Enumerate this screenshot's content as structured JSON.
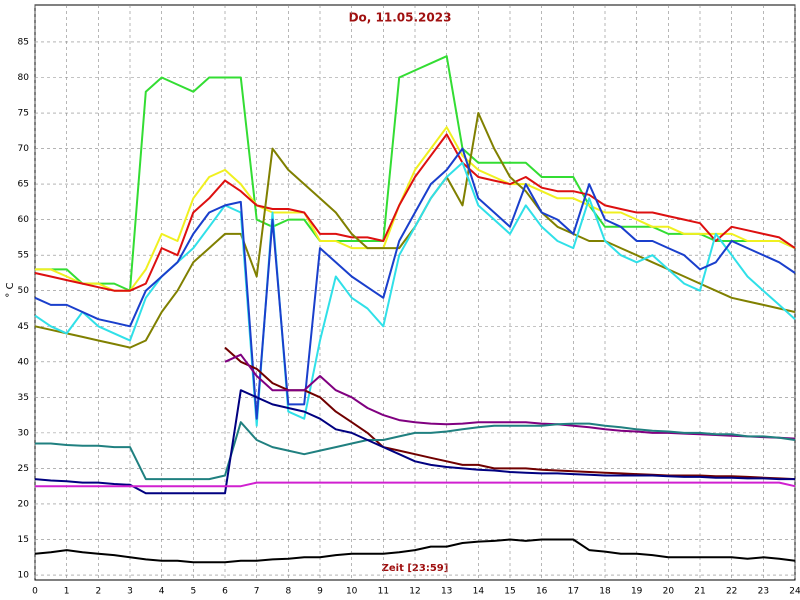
{
  "chart_data": {
    "type": "line",
    "title": "Do, 11.05.2023",
    "x_label": "Zeit [23:59]",
    "y_label": "° C",
    "x": [
      0,
      0.5,
      1,
      1.5,
      2,
      2.5,
      3,
      3.5,
      4,
      4.5,
      5,
      5.5,
      6,
      6.5,
      7,
      7.5,
      8,
      8.5,
      9,
      9.5,
      10,
      10.5,
      11,
      11.5,
      12,
      12.5,
      13,
      13.5,
      14,
      14.5,
      15,
      15.5,
      16,
      16.5,
      17,
      17.5,
      18,
      18.5,
      19,
      19.5,
      20,
      20.5,
      21,
      21.5,
      22,
      22.5,
      23,
      23.5,
      24
    ],
    "xlim": [
      0,
      24
    ],
    "xticks": [
      0,
      1,
      2,
      3,
      4,
      5,
      6,
      7,
      8,
      9,
      10,
      11,
      12,
      13,
      14,
      15,
      16,
      17,
      18,
      19,
      20,
      21,
      22,
      23,
      24
    ],
    "ylim": [
      9.3,
      90.2
    ],
    "yticks": [
      10,
      15,
      20,
      25,
      30,
      35,
      40,
      45,
      50,
      55,
      60,
      65,
      70,
      75,
      80,
      85
    ],
    "grid": true,
    "series": [
      {
        "color": "#33dd33",
        "values": [
          53,
          53,
          53,
          51,
          51,
          51,
          50,
          78,
          80,
          79,
          78,
          80,
          80,
          80,
          60,
          59,
          60,
          60,
          57,
          57,
          57,
          57,
          57,
          80,
          81,
          82,
          83,
          70,
          68,
          68,
          68,
          68,
          66,
          66,
          66,
          62,
          59,
          59,
          59,
          59,
          58,
          58,
          58,
          57,
          57,
          57,
          57,
          57,
          56
        ]
      },
      {
        "color": "#f0f020",
        "values": [
          53,
          53,
          52,
          51,
          51,
          50,
          50,
          53,
          58,
          57,
          63,
          66,
          67,
          65,
          62,
          61,
          61,
          61,
          57,
          57,
          56,
          56,
          56,
          62,
          67,
          70,
          73,
          69,
          67,
          66,
          65,
          65,
          64,
          63,
          63,
          62,
          61,
          61,
          60,
          59,
          59,
          58,
          58,
          58,
          58,
          57,
          57,
          57,
          56
        ]
      },
      {
        "color": "#dd1010",
        "values": [
          52.5,
          52,
          51.5,
          51,
          50.5,
          50,
          50,
          51,
          56,
          55,
          61,
          63,
          65.5,
          64,
          62,
          61.5,
          61.5,
          61,
          58,
          58,
          57.5,
          57.5,
          57,
          62,
          66,
          69,
          72,
          68,
          66,
          65.5,
          65,
          66,
          64.5,
          64,
          64,
          63.5,
          62,
          61.5,
          61,
          61,
          60.5,
          60,
          59.5,
          57,
          59,
          58.5,
          58,
          57.5,
          56
        ]
      },
      {
        "color": "#808000",
        "values": [
          45,
          44.5,
          44,
          43.5,
          43,
          42.5,
          42,
          43,
          47,
          50,
          54,
          56,
          58,
          58,
          52,
          70,
          67,
          65,
          63,
          61,
          58,
          56,
          56,
          56,
          59,
          63,
          66,
          62,
          75,
          70,
          66,
          64,
          61,
          59,
          58,
          57,
          57,
          56,
          55,
          54,
          53,
          52,
          51,
          50,
          49,
          48.5,
          48,
          47.5,
          47
        ]
      },
      {
        "color": "#30e0e8",
        "values": [
          46.5,
          45,
          44,
          47,
          45,
          44,
          43,
          49,
          52,
          54,
          56,
          59,
          62,
          61,
          31,
          61,
          33,
          32,
          43,
          52,
          49,
          47.5,
          45,
          55,
          59,
          63,
          66,
          68,
          62,
          60,
          58,
          62,
          59,
          57,
          56,
          63,
          57,
          55,
          54,
          55,
          53,
          51,
          50,
          58,
          55,
          52,
          50,
          48,
          46
        ]
      },
      {
        "color": "#1a3fcc",
        "values": [
          49,
          48,
          48,
          47,
          46,
          45.5,
          45,
          50,
          52,
          54,
          58,
          61,
          62,
          62.5,
          32,
          60,
          34,
          34,
          56,
          54,
          52,
          50.5,
          49,
          57,
          61,
          65,
          67,
          70,
          63,
          61,
          59,
          65,
          61,
          60,
          58,
          65,
          60,
          59,
          57,
          57,
          56,
          55,
          53,
          54,
          57,
          56,
          55,
          54,
          52.5
        ]
      },
      {
        "color": "#700000",
        "values": [
          null,
          null,
          null,
          null,
          null,
          null,
          null,
          null,
          null,
          null,
          null,
          null,
          42,
          40,
          39,
          37,
          36,
          36,
          35,
          33,
          31.5,
          30,
          28,
          27.5,
          27,
          26.5,
          26,
          25.5,
          25.5,
          25,
          25,
          25,
          24.8,
          24.7,
          24.6,
          24.5,
          24.4,
          24.3,
          24.2,
          24.1,
          24,
          24,
          24,
          23.9,
          23.9,
          23.8,
          23.7,
          23.6,
          23.5
        ]
      },
      {
        "color": "#800080",
        "values": [
          null,
          null,
          null,
          null,
          null,
          null,
          null,
          null,
          null,
          null,
          null,
          null,
          40,
          41,
          38,
          36,
          36,
          36,
          38,
          36,
          35,
          33.5,
          32.5,
          31.8,
          31.5,
          31.3,
          31.2,
          31.3,
          31.5,
          31.5,
          31.5,
          31.5,
          31.3,
          31.2,
          31,
          30.8,
          30.5,
          30.3,
          30.2,
          30,
          30,
          29.9,
          29.8,
          29.7,
          29.6,
          29.5,
          29.4,
          29.3,
          29.2
        ]
      },
      {
        "color": "#208080",
        "values": [
          28.5,
          28.5,
          28.3,
          28.2,
          28.2,
          28,
          28,
          23.5,
          23.5,
          23.5,
          23.5,
          23.5,
          24,
          31.5,
          29,
          28,
          27.5,
          27,
          27.5,
          28,
          28.5,
          29,
          29,
          29.5,
          30,
          30,
          30.2,
          30.5,
          30.8,
          31,
          31,
          31,
          31,
          31.2,
          31.3,
          31.3,
          31,
          30.8,
          30.5,
          30.3,
          30.2,
          30,
          30,
          29.8,
          29.8,
          29.5,
          29.5,
          29.3,
          29
        ]
      },
      {
        "color": "#000080",
        "values": [
          23.5,
          23.3,
          23.2,
          23,
          23,
          22.8,
          22.7,
          21.5,
          21.5,
          21.5,
          21.5,
          21.5,
          21.5,
          36,
          35,
          34,
          33.5,
          33,
          32,
          30.5,
          30,
          29,
          28,
          27,
          26,
          25.5,
          25.2,
          25,
          24.8,
          24.7,
          24.5,
          24.4,
          24.3,
          24.3,
          24.2,
          24.1,
          24,
          24,
          24,
          24,
          23.9,
          23.8,
          23.8,
          23.7,
          23.7,
          23.6,
          23.6,
          23.5,
          23.5
        ]
      },
      {
        "color": "#d020d0",
        "values": [
          22.5,
          22.5,
          22.5,
          22.5,
          22.5,
          22.5,
          22.5,
          22.5,
          22.5,
          22.5,
          22.5,
          22.5,
          22.5,
          22.5,
          23,
          23,
          23,
          23,
          23,
          23,
          23,
          23,
          23,
          23,
          23,
          23,
          23,
          23,
          23,
          23,
          23,
          23,
          23,
          23,
          23,
          23,
          23,
          23,
          23,
          23,
          23,
          23,
          23,
          23,
          23,
          23,
          23,
          23,
          22.5
        ]
      },
      {
        "color": "#000000",
        "values": [
          13,
          13.2,
          13.5,
          13.2,
          13,
          12.8,
          12.5,
          12.2,
          12,
          12,
          11.8,
          11.8,
          11.8,
          12,
          12,
          12.2,
          12.3,
          12.5,
          12.5,
          12.8,
          13,
          13,
          13,
          13.2,
          13.5,
          14,
          14,
          14.5,
          14.7,
          14.8,
          15,
          14.8,
          15,
          15,
          15,
          13.5,
          13.3,
          13,
          13,
          12.8,
          12.5,
          12.5,
          12.5,
          12.5,
          12.5,
          12.3,
          12.5,
          12.3,
          12
        ]
      }
    ]
  }
}
